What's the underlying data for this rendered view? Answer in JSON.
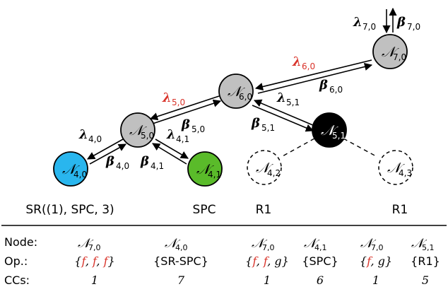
{
  "colors": {
    "gray": "#c0c0c0",
    "black": "#000000",
    "blue": "#29b6ee",
    "green": "#5abb2a",
    "red": "#d9342b",
    "white": "#ffffff"
  },
  "nodes": {
    "n70": {
      "base": "𝒩",
      "sub": "7,0"
    },
    "n60": {
      "base": "𝒩",
      "sub": "6,0"
    },
    "n50": {
      "base": "𝒩",
      "sub": "5,0"
    },
    "n51": {
      "base": "𝒩",
      "sub": "5,1"
    },
    "n40": {
      "base": "𝒩",
      "sub": "4,0"
    },
    "n41": {
      "base": "𝒩",
      "sub": "4,1"
    },
    "n42": {
      "base": "𝒩",
      "sub": "4,2"
    },
    "n43": {
      "base": "𝒩",
      "sub": "4,3"
    }
  },
  "edge_labels": {
    "lam70": {
      "base": "λ",
      "sub": "7,0"
    },
    "beta70": {
      "base": "β",
      "sub": "7,0"
    },
    "lam60": {
      "base": "λ",
      "sub": "6,0"
    },
    "beta60": {
      "base": "β",
      "sub": "6,0"
    },
    "lam50": {
      "base": "λ",
      "sub": "5,0"
    },
    "beta50": {
      "base": "β",
      "sub": "5,0"
    },
    "lam51": {
      "base": "λ",
      "sub": "5,1"
    },
    "beta51": {
      "base": "β",
      "sub": "5,1"
    },
    "lam40": {
      "base": "λ",
      "sub": "4,0"
    },
    "beta40": {
      "base": "β",
      "sub": "4,0"
    },
    "lam41": {
      "base": "λ",
      "sub": "4,1"
    },
    "beta41": {
      "base": "β",
      "sub": "4,1"
    }
  },
  "leaf_labels": {
    "n40": "SR((1), SPC, 3)",
    "n41": "SPC",
    "n42": "R1",
    "n43": "R1"
  },
  "table": {
    "row_headers": [
      "Node:",
      "Op.:",
      "CCs:"
    ],
    "columns": [
      {
        "node": {
          "base": "𝒩",
          "sub": "7,0"
        },
        "op": "{f, f, f}",
        "ccs": "1"
      },
      {
        "node": {
          "base": "𝒩",
          "sub": "4,0"
        },
        "op": "{SR-SPC}",
        "ccs": "7"
      },
      {
        "node": {
          "base": "𝒩",
          "sub": "7,0"
        },
        "op": "{f, f, g}",
        "ccs": "1"
      },
      {
        "node": {
          "base": "𝒩",
          "sub": "4,1"
        },
        "op": "{SPC}",
        "ccs": "6"
      },
      {
        "node": {
          "base": "𝒩",
          "sub": "7,0"
        },
        "op": "{f, g}",
        "ccs": "1"
      },
      {
        "node": {
          "base": "𝒩",
          "sub": "5,1"
        },
        "op": "{R1}",
        "ccs": "5"
      }
    ]
  }
}
